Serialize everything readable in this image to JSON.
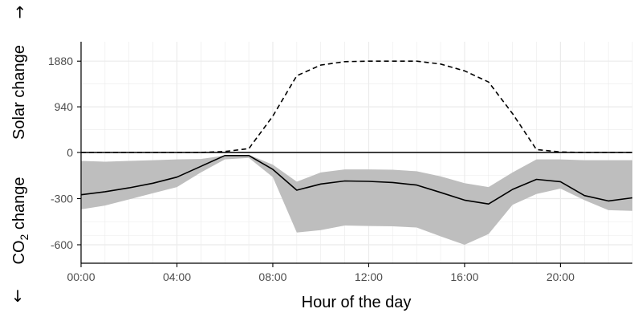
{
  "chart_data": {
    "type": "line",
    "title": "",
    "xlabel": "Hour of the day",
    "ylabel_top": "Solar change",
    "ylabel_bottom_prefix": "CO",
    "ylabel_bottom_sub": "2",
    "ylabel_bottom_suffix": " change",
    "arrow_up": "→",
    "arrow_down": "↓",
    "x_tick_labels": [
      "00:00",
      "04:00",
      "08:00",
      "12:00",
      "16:00",
      "20:00"
    ],
    "x_tick_hours": [
      0,
      4,
      8,
      12,
      16,
      20
    ],
    "y_tick_labels": [
      "-600",
      "-300",
      "0",
      "940",
      "1880"
    ],
    "xlim": [
      0,
      23
    ],
    "y_segments": {
      "negative": {
        "range": [
          -720,
          0
        ]
      },
      "positive": {
        "range": [
          0,
          2280
        ]
      }
    },
    "grid": true,
    "legend": "none",
    "x": [
      0,
      1,
      2,
      3,
      4,
      5,
      6,
      7,
      8,
      9,
      10,
      11,
      12,
      13,
      14,
      15,
      16,
      17,
      18,
      19,
      20,
      21,
      22,
      23
    ],
    "series": [
      {
        "id": "solar",
        "style": "dashed",
        "values": [
          0,
          0,
          0,
          0,
          0,
          0,
          20,
          80,
          750,
          1580,
          1800,
          1870,
          1880,
          1880,
          1880,
          1820,
          1680,
          1450,
          800,
          60,
          10,
          0,
          0,
          0
        ]
      },
      {
        "id": "co2",
        "style": "solid",
        "values": [
          -275,
          -255,
          -230,
          -200,
          -160,
          -90,
          -20,
          -20,
          -110,
          -245,
          -205,
          -185,
          -188,
          -195,
          -212,
          -260,
          -310,
          -335,
          -240,
          -175,
          -190,
          -280,
          -315,
          -295
        ]
      }
    ],
    "band": {
      "lower": [
        -370,
        -345,
        -305,
        -265,
        -225,
        -130,
        -45,
        -35,
        -160,
        -520,
        -505,
        -475,
        -478,
        -480,
        -488,
        -545,
        -600,
        -530,
        -340,
        -270,
        -235,
        -310,
        -375,
        -380
      ],
      "upper": [
        -55,
        -60,
        -55,
        -50,
        -45,
        -42,
        -20,
        -15,
        -80,
        -190,
        -130,
        -110,
        -110,
        -112,
        -122,
        -155,
        -200,
        -225,
        -130,
        -45,
        -45,
        -50,
        -50,
        -50
      ]
    },
    "colors": {
      "band": "#bebebe",
      "line": "#000000",
      "grid": "#ebebeb",
      "axis": "#000000",
      "tick_text": "#4d4d4d"
    }
  }
}
